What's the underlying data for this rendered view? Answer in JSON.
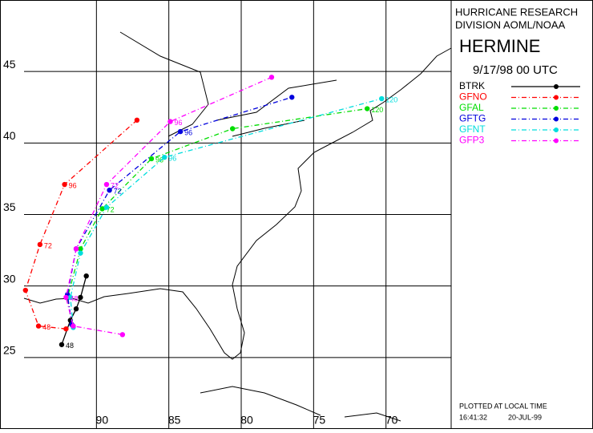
{
  "chart_data": {
    "type": "track-map",
    "title": "HERMINE",
    "header": [
      "HURRICANE RESEARCH",
      "DIVISION AOML/NOAA"
    ],
    "subtitle": "9/17/98 00   UTC",
    "footer": [
      "PLOTTED AT LOCAL TIME",
      "16:41:32",
      "20-JUL-99"
    ],
    "xlim": [
      95,
      65.5
    ],
    "ylim": [
      20,
      50
    ],
    "xticks": [
      90,
      85,
      80,
      75,
      70
    ],
    "yticks": [
      25,
      30,
      35,
      40,
      45
    ],
    "grid": true,
    "series": [
      {
        "name": "BTRK",
        "color": "#000000",
        "line_style": "solid",
        "x": [
          92.4,
          91.8,
          91.4,
          91.1,
          90.7
        ],
        "values": [
          25.9,
          27.6,
          28.4,
          29.2,
          30.7
        ],
        "point_labels": [
          "48",
          null,
          null,
          null,
          null
        ]
      },
      {
        "name": "GFNO",
        "color": "#ff0000",
        "line_style": "dashdot",
        "x": [
          92.1,
          94.0,
          94.9,
          93.9,
          92.2,
          87.2
        ],
        "values": [
          27.0,
          27.2,
          29.7,
          32.9,
          37.1,
          41.6
        ],
        "point_labels": [
          null,
          "48",
          null,
          "72",
          "96",
          null
        ]
      },
      {
        "name": "GFAL",
        "color": "#00dd00",
        "line_style": "dashdot",
        "x": [
          91.7,
          92.0,
          91.1,
          89.6,
          86.2,
          80.6,
          71.3
        ],
        "values": [
          27.3,
          29.2,
          32.6,
          35.4,
          38.9,
          41.0,
          42.4
        ],
        "point_labels": [
          null,
          null,
          null,
          "72",
          "96",
          null,
          "120"
        ]
      },
      {
        "name": "GFTG",
        "color": "#0000dd",
        "line_style": "dashdot",
        "x": [
          91.7,
          92.0,
          91.4,
          89.1,
          84.2,
          76.5
        ],
        "values": [
          27.3,
          29.4,
          32.6,
          36.7,
          40.8,
          43.2
        ],
        "point_labels": [
          null,
          null,
          null,
          "72",
          "96",
          null
        ]
      },
      {
        "name": "GFNT",
        "color": "#00dddd",
        "line_style": "dashdot",
        "x": [
          91.6,
          91.8,
          91.1,
          89.3,
          85.3,
          70.3
        ],
        "values": [
          27.1,
          29.2,
          32.3,
          35.5,
          39.0,
          43.1
        ],
        "point_labels": [
          null,
          null,
          null,
          null,
          "96",
          "120"
        ]
      },
      {
        "name": "GFP3",
        "color": "#ff00ff",
        "line_style": "dashdot",
        "x": [
          88.2,
          91.6,
          92.1,
          91.4,
          89.3,
          84.9,
          77.9
        ],
        "values": [
          26.6,
          27.2,
          29.2,
          32.6,
          37.1,
          41.5,
          44.6
        ],
        "point_labels": [
          null,
          null,
          "48",
          null,
          "72",
          "96",
          null
        ]
      }
    ]
  }
}
